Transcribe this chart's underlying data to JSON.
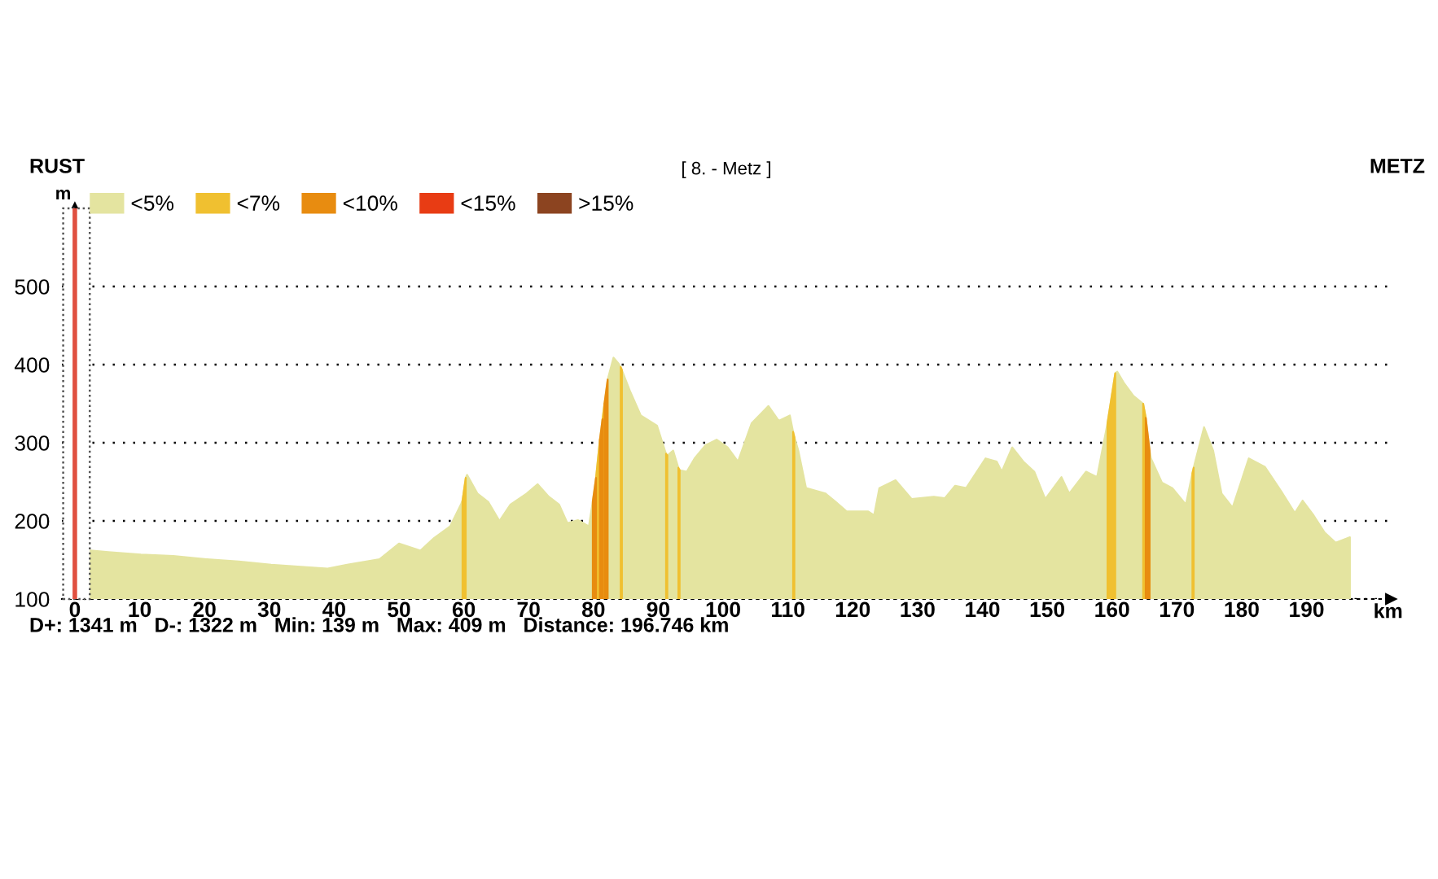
{
  "chart_data": {
    "type": "area",
    "title": "[ 8. - Metz ]",
    "annotations": [
      "RUST",
      "METZ",
      "D+: 1341 m   D-: 1322 m   Min: 139 m   Max: 409 m   Distance: 196.746 km"
    ],
    "xlabel": "km",
    "ylabel": "m",
    "xlim": [
      -2,
      203
    ],
    "ylim": [
      100,
      600
    ],
    "xticks": [
      0,
      10,
      20,
      30,
      40,
      50,
      60,
      70,
      80,
      90,
      100,
      110,
      120,
      130,
      140,
      150,
      160,
      170,
      180,
      190
    ],
    "yticks": [
      100,
      200,
      300,
      400,
      500
    ],
    "grid": "y",
    "legend": "top left",
    "ref_lines": [
      {
        "axis": "x",
        "value": 0,
        "color": "#e05040"
      }
    ],
    "bands": [
      {
        "axis": "x",
        "from": -1.8,
        "to": 2.3,
        "color": "#ffffff"
      }
    ],
    "series": [
      {
        "name": "<5%",
        "color": "#e4e4a0",
        "x": [
          2.4,
          5.2,
          10.2,
          15.2,
          20.3,
          25.3,
          30.3,
          35.3,
          39,
          42,
          47,
          50,
          53.3,
          55.4,
          57.9,
          59.6,
          59.8,
          60.3,
          60.5,
          62.1,
          63.8,
          65.5,
          67.2,
          69.7,
          71.4,
          73.1,
          74.7,
          76,
          77.6,
          79.3,
          79.9,
          80.4,
          81,
          81.4,
          81.7,
          82.2,
          83.1,
          83.9,
          84.3,
          85.6,
          87.3,
          89.8,
          91.3,
          92.3,
          93.2,
          94.4,
          95.6,
          97.3,
          99,
          100.7,
          102.3,
          104.4,
          107,
          108.6,
          110.3,
          110.9,
          111.6,
          112.8,
          115.8,
          117.4,
          119.1,
          122.4,
          123.3,
          124.1,
          126.6,
          129.1,
          132.5,
          134.2,
          135.8,
          137.5,
          140.5,
          142.2,
          143,
          144.6,
          146.3,
          148,
          149.7,
          152.2,
          153.4,
          156,
          157.7,
          159.3,
          160.5,
          160.8,
          161.8,
          163.3,
          164.8,
          165.2,
          165.8,
          166,
          167.7,
          169.3,
          171.4,
          172.5,
          174.2,
          175.6,
          176.9,
          178.6,
          181.1,
          183.6,
          186.1,
          188.2,
          189.4,
          191.1,
          192.8,
          194.5,
          196.7
        ],
        "values": [
          162,
          160,
          157,
          155,
          151,
          148,
          144,
          141,
          139,
          144,
          151,
          171,
          162,
          178,
          193,
          222,
          226,
          255,
          259,
          235,
          224,
          200,
          221,
          235,
          247,
          231,
          221,
          197,
          201,
          193,
          225,
          255,
          304,
          330,
          350,
          381,
          409,
          401,
          395,
          367,
          335,
          322,
          283,
          290,
          265,
          263,
          280,
          297,
          304,
          294,
          276,
          325,
          347,
          328,
          335,
          310,
          290,
          242,
          235,
          224,
          212,
          212,
          207,
          242,
          252,
          228,
          231,
          229,
          245,
          242,
          280,
          276,
          263,
          294,
          276,
          263,
          228,
          256,
          235,
          263,
          256,
          325,
          389,
          391,
          377,
          360,
          350,
          332,
          290,
          280,
          249,
          242,
          221,
          265,
          320,
          290,
          235,
          217,
          280,
          269,
          238,
          210,
          226,
          207,
          185,
          172,
          179
        ]
      },
      {
        "name": "<7%",
        "color": "#f0c030",
        "x": [
          59.8,
          60.3,
          null,
          80.4,
          81,
          null,
          81.4,
          81.7,
          null,
          84.2,
          84.4,
          null,
          91.2,
          91.4,
          null,
          93.1,
          93.3,
          null,
          110.8,
          111,
          null,
          159.3,
          160.5,
          null,
          164.8,
          165.2,
          null,
          172.4,
          172.6
        ],
        "values": [
          226,
          255,
          null,
          255,
          304,
          null,
          330,
          350,
          null,
          397,
          393,
          null,
          286,
          284,
          null,
          268,
          265,
          null,
          314,
          307,
          null,
          325,
          389,
          null,
          350,
          332,
          null,
          261,
          268
        ]
      },
      {
        "name": "<10%",
        "color": "#e88c10",
        "x": [
          79.9,
          80.4,
          null,
          81,
          81.4,
          null,
          81.7,
          82.2,
          null,
          165.2,
          165.8
        ],
        "values": [
          225,
          255,
          null,
          304,
          330,
          null,
          350,
          381,
          null,
          332,
          290
        ]
      },
      {
        "name": "<15%",
        "color": "#e83c14"
      },
      {
        "name": ">15%",
        "color": "#8c4420"
      }
    ]
  }
}
